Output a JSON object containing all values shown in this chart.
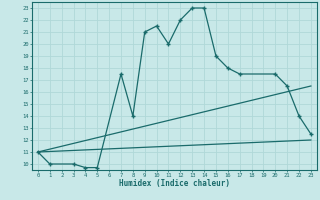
{
  "xlabel": "Humidex (Indice chaleur)",
  "bg_color": "#c8e8e8",
  "line_color": "#1a6b6b",
  "grid_color": "#b0d8d8",
  "xlim": [
    -0.5,
    23.5
  ],
  "ylim": [
    9.5,
    23.5
  ],
  "yticks": [
    10,
    11,
    12,
    13,
    14,
    15,
    16,
    17,
    18,
    19,
    20,
    21,
    22,
    23
  ],
  "xticks": [
    0,
    1,
    2,
    3,
    4,
    5,
    6,
    7,
    8,
    9,
    10,
    11,
    12,
    13,
    14,
    15,
    16,
    17,
    18,
    19,
    20,
    21,
    22,
    23
  ],
  "line1_x": [
    0,
    1,
    3,
    4,
    5,
    7,
    8,
    9,
    10,
    11,
    12,
    13,
    14,
    15,
    16,
    17,
    20,
    21,
    22,
    23
  ],
  "line1_y": [
    11,
    10,
    10,
    9.7,
    9.7,
    17.5,
    14,
    21,
    21.5,
    20,
    22,
    23,
    23,
    19,
    18,
    17.5,
    17.5,
    16.5,
    14,
    12.5
  ],
  "line2_x": [
    0,
    23
  ],
  "line2_y": [
    11,
    12.0
  ],
  "line3_x": [
    0,
    23
  ],
  "line3_y": [
    11,
    16.5
  ]
}
